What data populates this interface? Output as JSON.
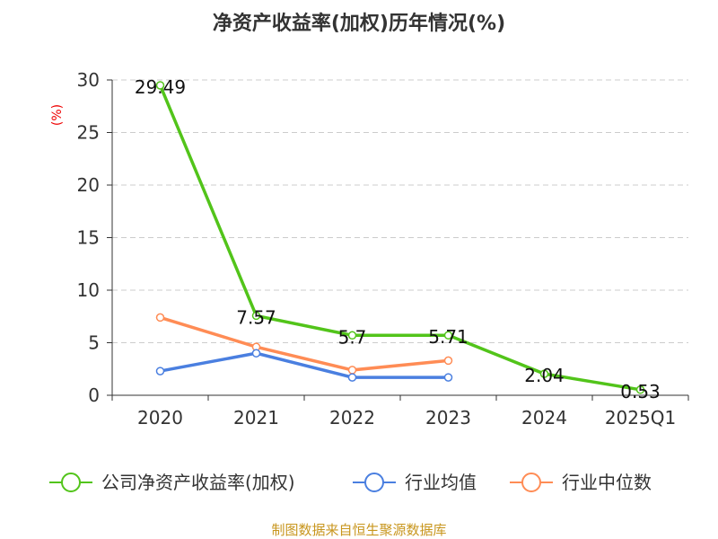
{
  "chart_data": {
    "type": "line",
    "title": "净资产收益率(加权)历年情况(%)",
    "ylabel": "(%)",
    "xlabel": "",
    "categories": [
      "2020",
      "2021",
      "2022",
      "2023",
      "2024",
      "2025Q1"
    ],
    "ylim": [
      0,
      30
    ],
    "yticks": [
      0,
      5,
      10,
      15,
      20,
      25,
      30
    ],
    "grid": true,
    "legend_position": "bottom",
    "series": [
      {
        "name": "公司净资产收益率(加权)",
        "color": "#52c41a",
        "values": [
          29.49,
          7.57,
          5.7,
          5.71,
          2.04,
          0.53
        ],
        "labels": [
          "29.49",
          "7.57",
          "5.7",
          "5.71",
          "2.04",
          "0.53"
        ]
      },
      {
        "name": "行业均值",
        "color": "#4a7fe0",
        "values": [
          2.3,
          4.0,
          1.7,
          1.7,
          null,
          null
        ]
      },
      {
        "name": "行业中位数",
        "color": "#ff8c55",
        "values": [
          7.4,
          4.6,
          2.4,
          3.3,
          null,
          null
        ]
      }
    ]
  },
  "footer": "制图数据来自恒生聚源数据库"
}
